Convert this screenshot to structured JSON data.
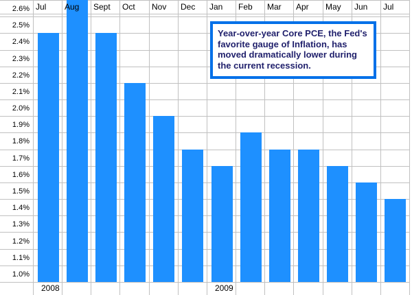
{
  "chart_data": {
    "type": "bar",
    "categories": [
      "Jul",
      "Aug",
      "Sept",
      "Oct",
      "Nov",
      "Dec",
      "Jan",
      "Feb",
      "Mar",
      "Apr",
      "May",
      "Jun",
      "Jul"
    ],
    "values": [
      2.45,
      2.65,
      2.45,
      2.15,
      1.95,
      1.75,
      1.65,
      1.85,
      1.75,
      1.75,
      1.65,
      1.55,
      1.45
    ],
    "year_labels": [
      {
        "label": "2008",
        "category_index": 0
      },
      {
        "label": "2009",
        "category_index": 6
      }
    ],
    "y_ticks": [
      "1.0%",
      "1.1%",
      "1.2%",
      "1.3%",
      "1.4%",
      "1.5%",
      "1.6%",
      "1.7%",
      "1.8%",
      "1.9%",
      "2.0%",
      "2.1%",
      "2.2%",
      "2.3%",
      "2.4%",
      "2.5%",
      "2.6%"
    ],
    "ylim": [
      0.95,
      2.65
    ],
    "grid": true,
    "annotation": "Year-over-year Core PCE, the Fed's favorite gauge of Inflation, has moved dramatically lower during the current recession.",
    "colors": {
      "bar": "#1e90ff",
      "grid": "#c0c0c0",
      "annotation_border": "#0070e8",
      "annotation_text": "#1f1f6b"
    }
  }
}
